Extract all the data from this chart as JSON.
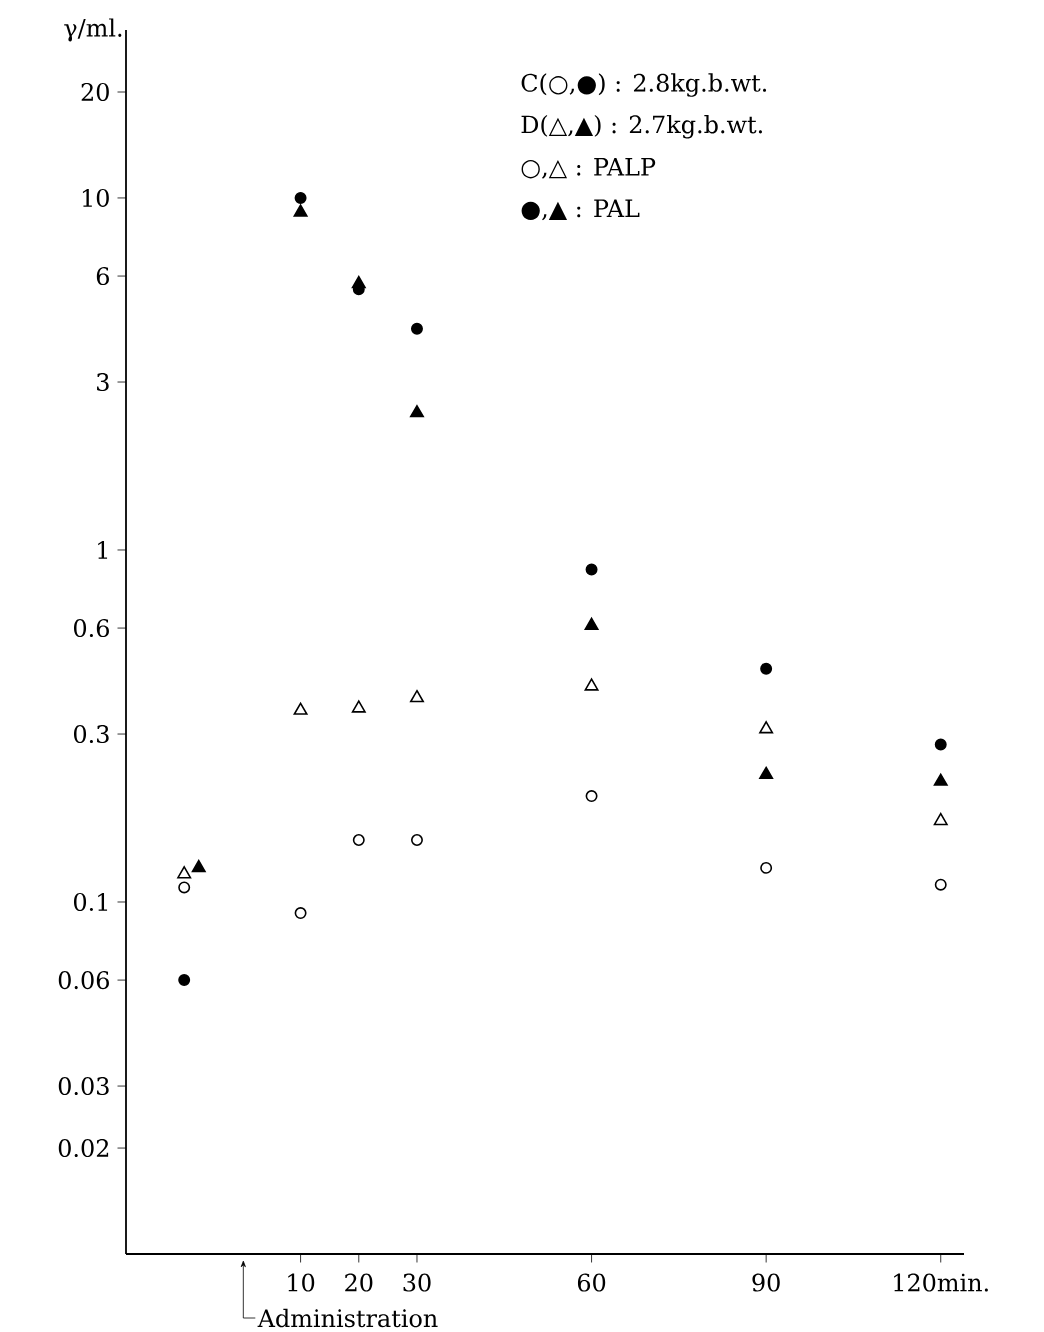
{
  "chart_data": {
    "type": "scatter",
    "ylabel": "γ/ml.",
    "log": "y",
    "grid": false,
    "xlim": [
      -20,
      124
    ],
    "ylim": [
      0.01,
      30
    ],
    "xticks": [
      10,
      20,
      30,
      60,
      90,
      {
        "value": 120,
        "label": "120min."
      }
    ],
    "yticks": [
      0.02,
      0.03,
      0.06,
      0.1,
      0.3,
      0.6,
      1,
      3,
      6,
      10,
      20
    ],
    "annotations": [
      "C(○,●) : 2.8kg.b.wt.",
      "D(△,▲) : 2.7kg.b.wt.",
      "○,△ : PALP",
      "●,▲ : PAL",
      "Administration"
    ],
    "series": [
      {
        "color": "#ffffff",
        "marker": "circle",
        "x": [
          -10,
          10,
          20,
          30,
          60,
          90,
          120
        ],
        "values": [
          0.11,
          0.093,
          0.15,
          0.15,
          0.2,
          0.125,
          0.112
        ]
      },
      {
        "color": "#000000",
        "marker": "circle",
        "x": [
          -10,
          10,
          20,
          30,
          60,
          90,
          120
        ],
        "values": [
          0.06,
          10,
          5.5,
          4.25,
          0.88,
          0.46,
          0.28
        ]
      },
      {
        "color": "#ffffff",
        "marker": "triangle",
        "x": [
          -10,
          10,
          20,
          30,
          60,
          90,
          120
        ],
        "values": [
          0.12,
          0.35,
          0.355,
          0.38,
          0.41,
          0.31,
          0.17
        ]
      },
      {
        "color": "#000000",
        "marker": "triangle",
        "x": [
          -7.5,
          10,
          20,
          30,
          60,
          90,
          120
        ],
        "values": [
          0.125,
          9.1,
          5.7,
          2.45,
          0.61,
          0.23,
          0.22
        ]
      }
    ]
  }
}
